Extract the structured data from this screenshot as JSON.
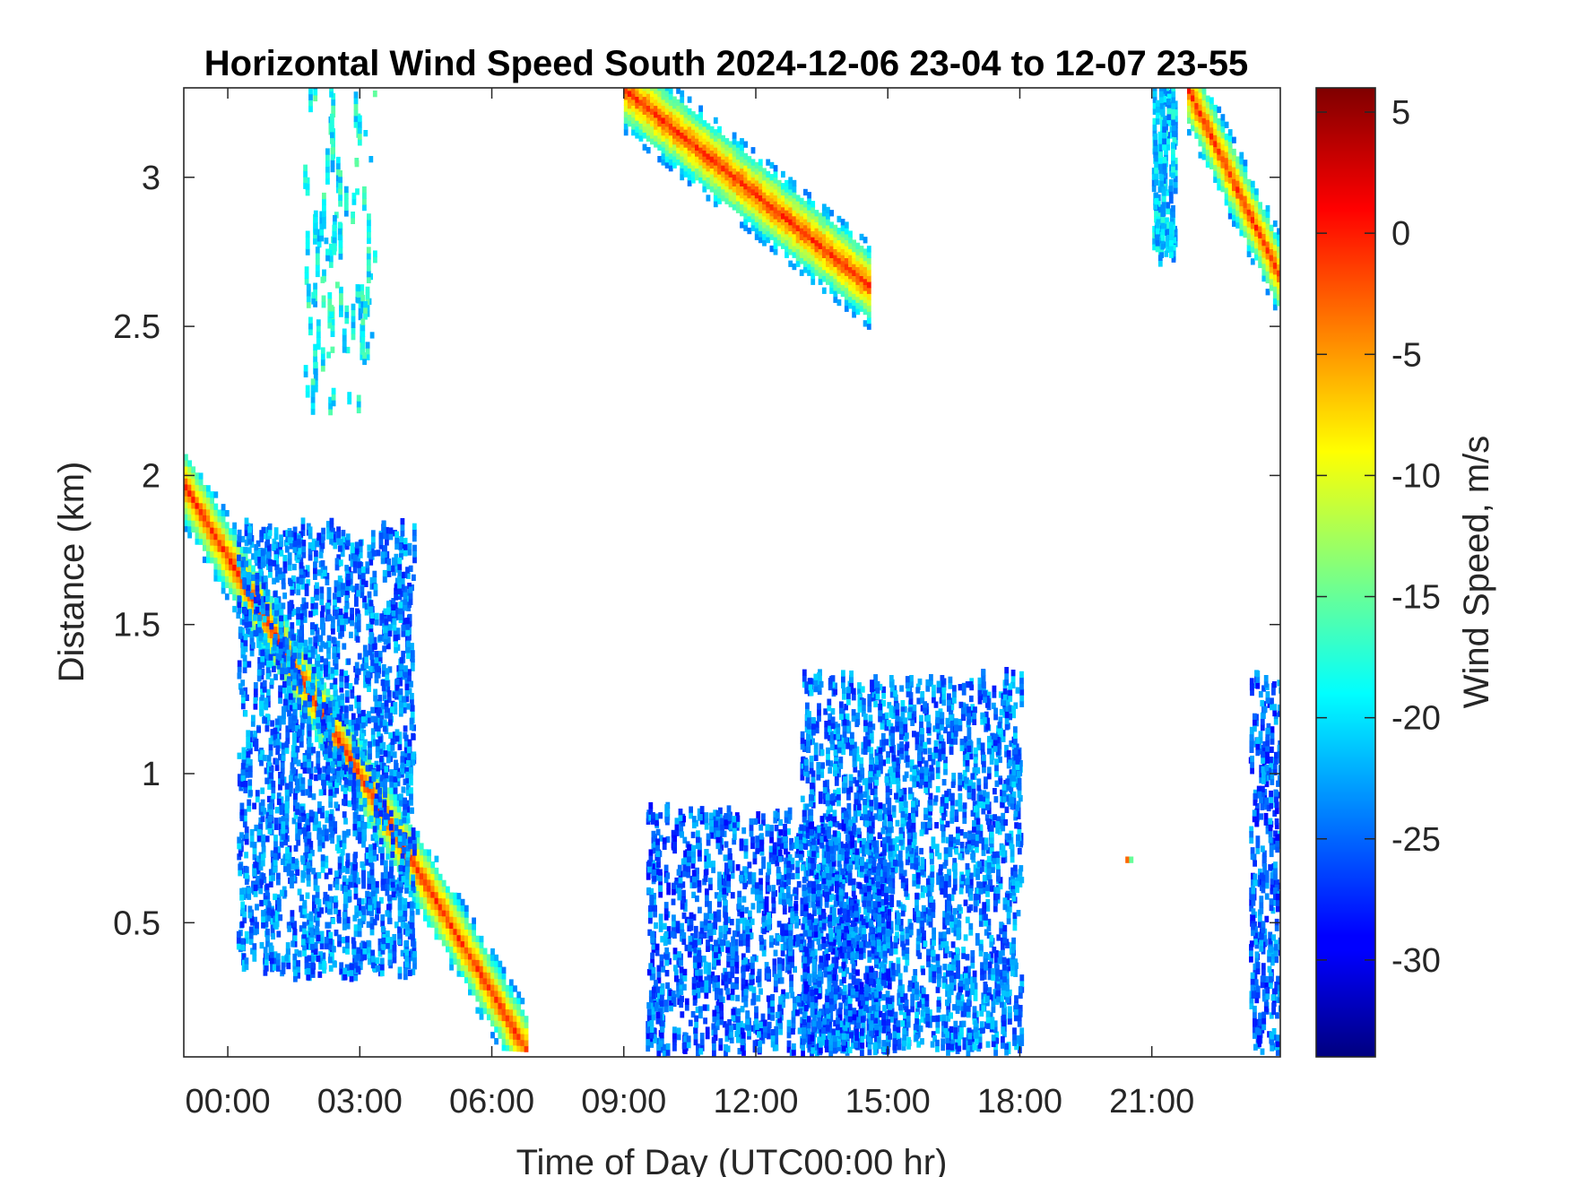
{
  "chart_data": {
    "type": "heatmap",
    "title": "Horizontal Wind Speed South 2024-12-06 23-04 to 12-07 23-55",
    "xlabel": "Time of Day (UTC00:00 hr)",
    "ylabel": "Distance (km)",
    "colorbar_label": "Wind Speed, m/s",
    "colormap": "jet",
    "xlim": [
      -1.0,
      23.92
    ],
    "ylim": [
      0.05,
      3.3
    ],
    "clim": [
      -34,
      6
    ],
    "x_ticks": [
      0,
      3,
      6,
      9,
      12,
      15,
      18,
      21
    ],
    "x_tick_labels": [
      "00:00",
      "03:00",
      "06:00",
      "09:00",
      "12:00",
      "15:00",
      "18:00",
      "21:00"
    ],
    "y_ticks": [
      0.5,
      1,
      1.5,
      2,
      2.5,
      3
    ],
    "y_tick_labels": [
      "0.5",
      "1",
      "1.5",
      "2",
      "2.5",
      "3"
    ],
    "colorbar_ticks": [
      5,
      0,
      -5,
      -10,
      -15,
      -20,
      -25,
      -30
    ],
    "colorbar_tick_labels": [
      "5",
      "0",
      "-5",
      "-10",
      "-15",
      "-20",
      "-25",
      "-30"
    ],
    "features": [
      {
        "name": "descending band",
        "t_start": -1.0,
        "d_start": 1.95,
        "t_end": 6.8,
        "d_end": 0.05,
        "core_speed": -1
      },
      {
        "name": "descending band",
        "t_start": 9.0,
        "d_start": 3.28,
        "t_end": 14.6,
        "d_end": 2.62,
        "core_speed": -1
      },
      {
        "name": "descending band",
        "t_start": 21.8,
        "d_start": 3.28,
        "t_end": 23.9,
        "d_end": 2.65,
        "core_speed": -1
      },
      {
        "name": "scatter",
        "t_range": [
          0.2,
          4.2
        ],
        "d_range": [
          0.3,
          1.8
        ],
        "speed": -24
      },
      {
        "name": "scatter",
        "t_range": [
          13.0,
          18.0
        ],
        "d_range": [
          0.05,
          1.3
        ],
        "speed": -24
      },
      {
        "name": "scatter",
        "t_range": [
          9.5,
          15.0
        ],
        "d_range": [
          0.05,
          0.85
        ],
        "speed": -25
      },
      {
        "name": "scatter",
        "t_range": [
          23.2,
          23.9
        ],
        "d_range": [
          0.05,
          1.3
        ],
        "speed": -25
      },
      {
        "name": "columns",
        "t_range": [
          1.7,
          3.3
        ],
        "d_range": [
          2.2,
          3.3
        ],
        "speed": -19
      },
      {
        "name": "columns",
        "t_range": [
          21.0,
          21.5
        ],
        "d_range": [
          2.7,
          3.3
        ],
        "speed": -21
      },
      {
        "name": "spot",
        "t": 20.4,
        "d": 0.7,
        "speed": -3
      }
    ]
  }
}
